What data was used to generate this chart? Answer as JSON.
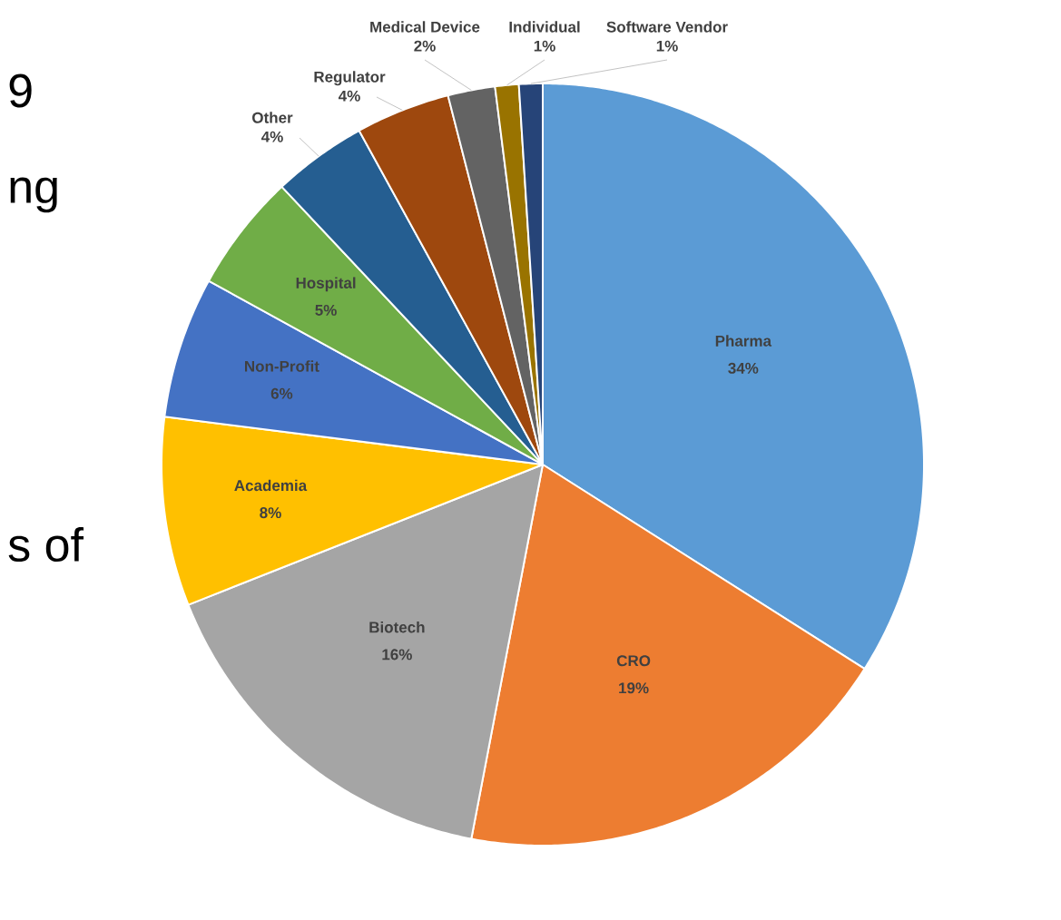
{
  "chart_data": {
    "type": "pie",
    "categories": [
      "Pharma",
      "CRO",
      "Biotech",
      "Academia",
      "Non-Profit",
      "Hospital",
      "Other",
      "Regulator",
      "Medical Device",
      "Individual",
      "Software Vendor"
    ],
    "values": [
      34,
      19,
      16,
      8,
      6,
      5,
      4,
      4,
      2,
      1,
      1
    ],
    "value_labels": [
      "34%",
      "19%",
      "16%",
      "8%",
      "6%",
      "5%",
      "4%",
      "4%",
      "2%",
      "1%",
      "1%"
    ],
    "colors": [
      "#5b9bd5",
      "#ed7d31",
      "#a5a5a5",
      "#ffc000",
      "#4472c4",
      "#70ad47",
      "#255e91",
      "#9e480e",
      "#636363",
      "#997300",
      "#264478"
    ],
    "annotations": [
      "9",
      "ng",
      "s of"
    ]
  }
}
